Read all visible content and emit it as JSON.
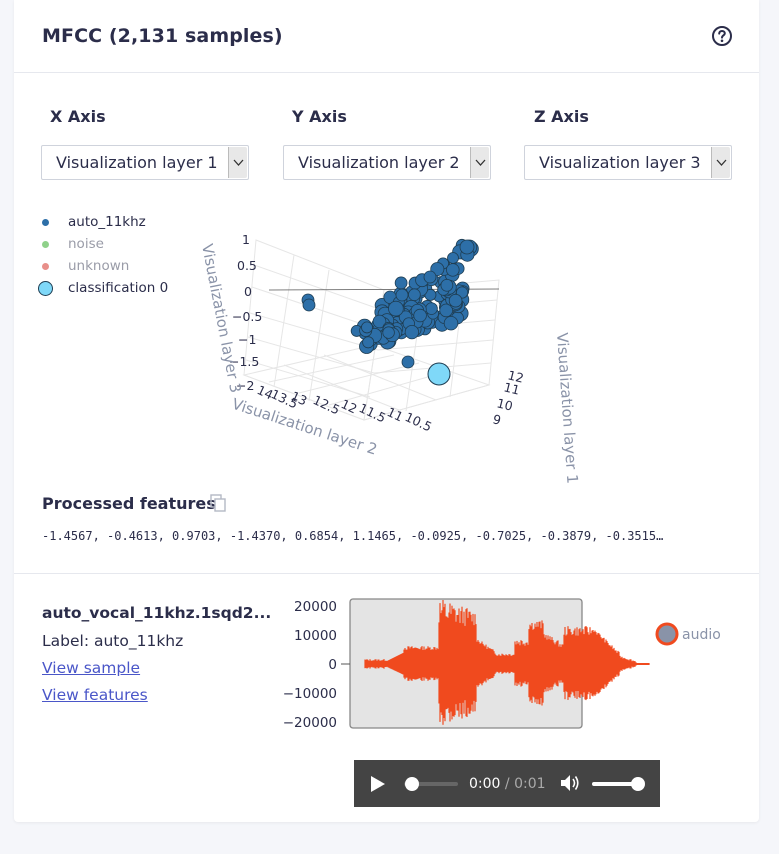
{
  "header": {
    "title": "MFCC (2,131 samples)",
    "help_icon": "help-circle-icon"
  },
  "axes": [
    {
      "label": "X Axis",
      "selected": "Visualization layer 1"
    },
    {
      "label": "Y Axis",
      "selected": "Visualization layer 2"
    },
    {
      "label": "Z Axis",
      "selected": "Visualization layer 3"
    }
  ],
  "scatter": {
    "legend": [
      {
        "name": "auto_11khz",
        "color": "#2d6fa8"
      },
      {
        "name": "noise",
        "color": "#8fd18a"
      },
      {
        "name": "unknown",
        "color": "#e88f8a"
      },
      {
        "name": "classification 0",
        "color": "#7fd8f8"
      }
    ],
    "z_ticks": [
      "1",
      "0.5",
      "0",
      "−0.5",
      "−1",
      "−1.5",
      "−2"
    ],
    "y_ticks": [
      "14",
      "13.5",
      "13",
      "12.5",
      "12",
      "11.5",
      "11",
      "10.5"
    ],
    "x_ticks": [
      "12",
      "11",
      "10",
      "9"
    ],
    "x_title": "Visualization layer 1",
    "y_title": "Visualization layer 2",
    "z_title": "Visualization layer 3"
  },
  "features": {
    "title": "Processed features",
    "copy_icon": "copy-icon",
    "values": "-1.4567, -0.4613, 0.9703, -1.4370, 0.6854, 1.1465, -0.0925, -0.7025, -0.3879, -0.3515…"
  },
  "sample": {
    "name": "auto_vocal_11khz.1sqd2...",
    "label": "Label: auto_11khz",
    "view_sample": "View sample",
    "view_features": "View features"
  },
  "waveform": {
    "y_ticks": [
      "20000",
      "10000",
      "0",
      "−10000",
      "−20000"
    ],
    "legend": "audio",
    "color": "#f04a1f"
  },
  "player": {
    "current": "0:00",
    "separator": "/",
    "duration": "0:01",
    "play_icon": "play-icon",
    "volume_icon": "volume-icon"
  }
}
